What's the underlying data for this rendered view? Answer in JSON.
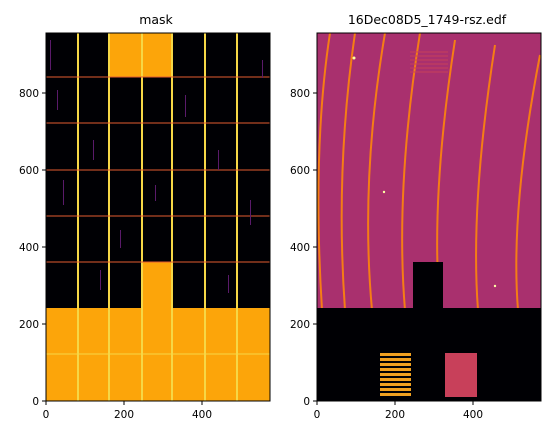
{
  "panels": [
    {
      "title": "mask",
      "x_ticks": [
        "0",
        "200",
        "400"
      ],
      "y_ticks": [
        "0",
        "200",
        "400",
        "600",
        "800"
      ]
    },
    {
      "title": "16Dec08D5_1749-rsz.edf",
      "x_ticks": [
        "0",
        "200",
        "400"
      ],
      "y_ticks": [
        "0",
        "200",
        "400",
        "600",
        "800"
      ]
    }
  ],
  "colors": {
    "mask_bg": "#000004",
    "mask_fill": "#fca50a",
    "mask_line_v": "#f6d746",
    "mask_line_h": "#e55c30",
    "image_bg": "#a9306e",
    "ring": "#f57d15",
    "dark": "#000004",
    "panel_bar": "#f0a020",
    "panel_rect": "#c8405a"
  }
}
